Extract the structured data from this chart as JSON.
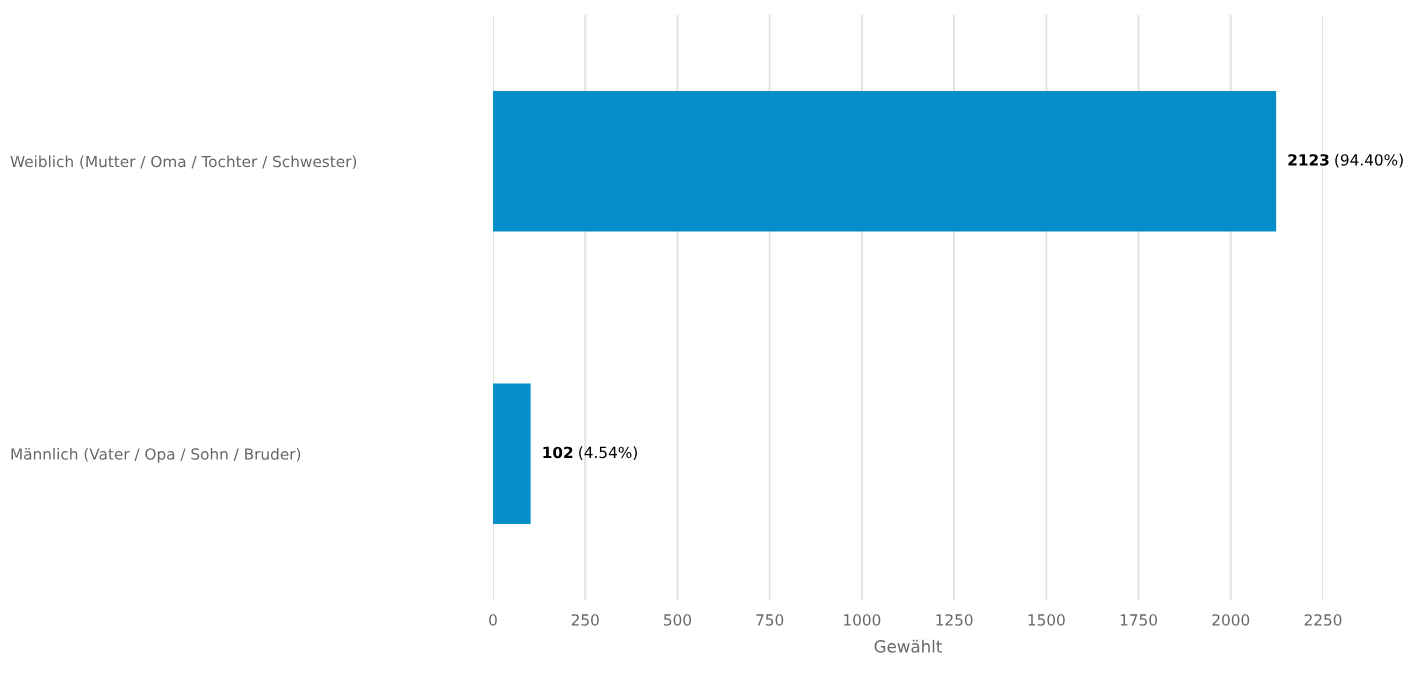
{
  "chart_data": {
    "type": "bar",
    "orientation": "horizontal",
    "categories": [
      "Weiblich (Mutter / Oma / Tochter / Schwester)",
      "Männlich (Vater / Opa / Sohn / Bruder)"
    ],
    "values": [
      2123,
      102
    ],
    "color": "#068ec8",
    "xlabel": "Gewählt",
    "xlim": [
      0,
      2250
    ],
    "xticks": [
      0,
      250,
      500,
      750,
      1000,
      1250,
      1500,
      1750,
      2000,
      2250
    ],
    "grid": "x",
    "value_labels": [
      "2123 (94.40%)",
      "102 (4.54%)"
    ]
  }
}
